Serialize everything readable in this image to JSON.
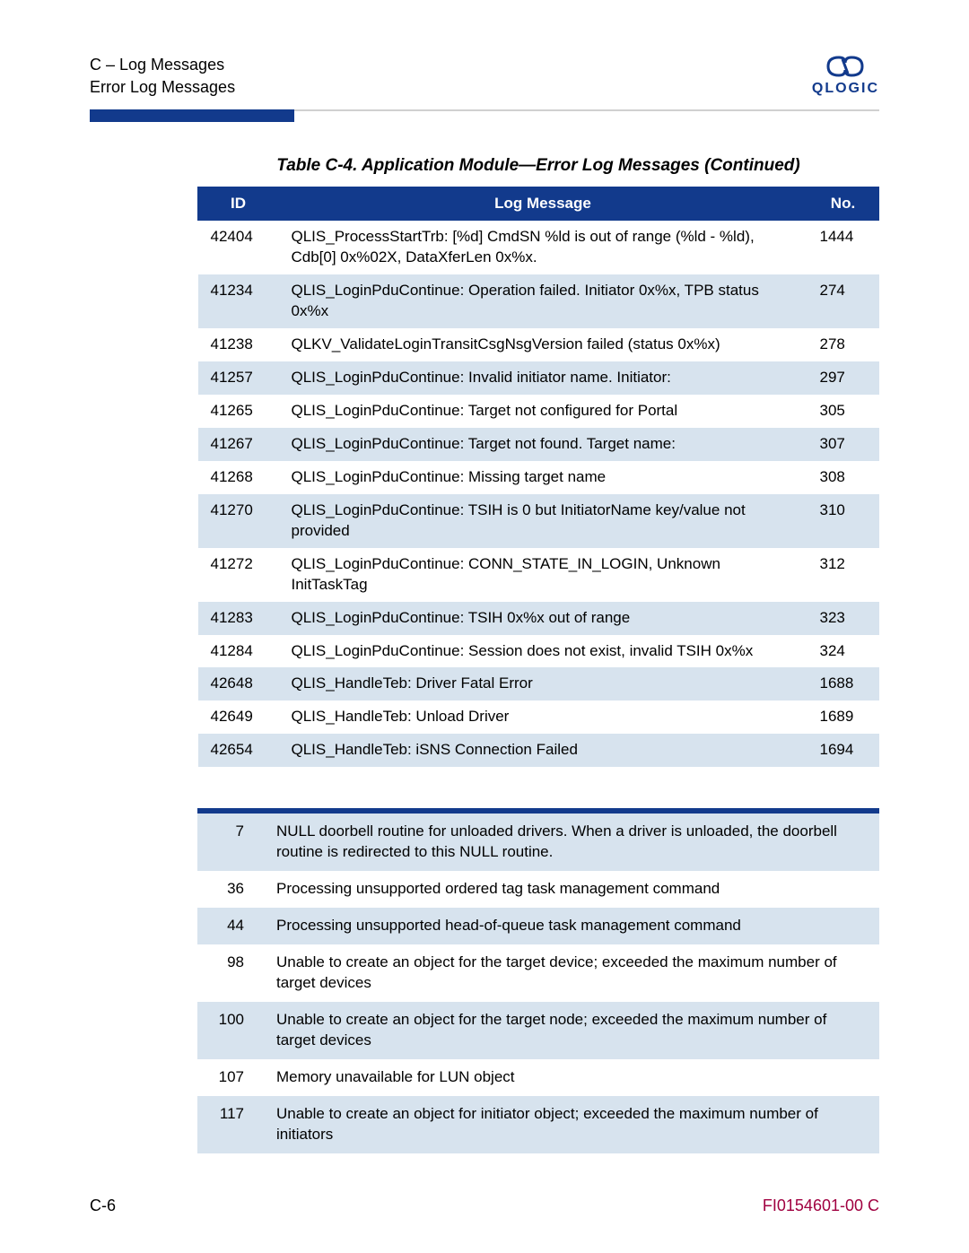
{
  "header": {
    "line1": "C – Log Messages",
    "line2": "Error Log Messages",
    "logo_text": "QLOGIC",
    "logo_color": "#123a8c"
  },
  "caption": "Table C-4. Application Module—Error Log Messages  (Continued)",
  "table1": {
    "columns": [
      "ID",
      "Log Message",
      "No."
    ],
    "header_bg": "#123a8c",
    "header_fg": "#ffffff",
    "alt_bg": "#d7e3ee",
    "rows": [
      {
        "id": "42404",
        "msg": "QLIS_ProcessStartTrb: [%d] CmdSN %ld is out of range (%ld - %ld), Cdb[0] 0x%02X, DataXferLen 0x%x.",
        "no": "1444",
        "alt": false
      },
      {
        "id": "41234",
        "msg": "QLIS_LoginPduContinue: Operation failed. Initiator 0x%x, TPB status 0x%x",
        "no": "274",
        "alt": true
      },
      {
        "id": "41238",
        "msg": "QLKV_ValidateLoginTransitCsgNsgVersion failed (status 0x%x)",
        "no": "278",
        "alt": false
      },
      {
        "id": "41257",
        "msg": "QLIS_LoginPduContinue: Invalid initiator name. Initiator:",
        "no": "297",
        "alt": true
      },
      {
        "id": "41265",
        "msg": "QLIS_LoginPduContinue: Target not configured for Portal",
        "no": "305",
        "alt": false
      },
      {
        "id": "41267",
        "msg": "QLIS_LoginPduContinue: Target not found. Target name:",
        "no": "307",
        "alt": true
      },
      {
        "id": "41268",
        "msg": "QLIS_LoginPduContinue: Missing target name",
        "no": "308",
        "alt": false
      },
      {
        "id": "41270",
        "msg": "QLIS_LoginPduContinue: TSIH is 0 but InitiatorName key/value not provided",
        "no": "310",
        "alt": true
      },
      {
        "id": "41272",
        "msg": "QLIS_LoginPduContinue: CONN_STATE_IN_LOGIN, Unknown InitTaskTag",
        "no": "312",
        "alt": false
      },
      {
        "id": "41283",
        "msg": "QLIS_LoginPduContinue: TSIH 0x%x out of range",
        "no": "323",
        "alt": true
      },
      {
        "id": "41284",
        "msg": "QLIS_LoginPduContinue: Session does not exist, invalid TSIH 0x%x",
        "no": "324",
        "alt": false
      },
      {
        "id": "42648",
        "msg": "QLIS_HandleTeb: Driver Fatal Error",
        "no": "1688",
        "alt": true
      },
      {
        "id": "42649",
        "msg": "QLIS_HandleTeb: Unload Driver",
        "no": "1689",
        "alt": false
      },
      {
        "id": "42654",
        "msg": "QLIS_HandleTeb: iSNS Connection Failed",
        "no": "1694",
        "alt": true
      }
    ]
  },
  "table2": {
    "alt_bg": "#d7e3ee",
    "rows": [
      {
        "n": "7",
        "msg": "NULL doorbell routine for unloaded drivers. When a driver is unloaded, the doorbell routine is redirected to this NULL routine.",
        "alt": true
      },
      {
        "n": "36",
        "msg": "Processing unsupported ordered tag task management command",
        "alt": false
      },
      {
        "n": "44",
        "msg": "Processing unsupported head-of-queue task management command",
        "alt": true
      },
      {
        "n": "98",
        "msg": "Unable to create an object for the target device; exceeded the maximum number of target devices",
        "alt": false
      },
      {
        "n": "100",
        "msg": "Unable to create an object for the target node; exceeded the maximum number of target devices",
        "alt": true
      },
      {
        "n": "107",
        "msg": "Memory unavailable for LUN object",
        "alt": false
      },
      {
        "n": "117",
        "msg": "Unable to create an object for initiator object; exceeded the maximum number of initiators",
        "alt": true
      }
    ]
  },
  "footer": {
    "page": "C-6",
    "doc": "FI0154601-00  C",
    "doc_color": "#a00040"
  }
}
